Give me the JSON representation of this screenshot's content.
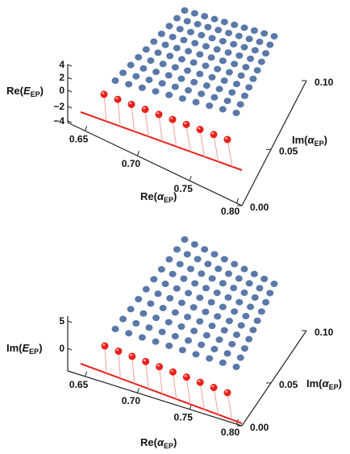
{
  "chart_data": [
    {
      "type": "scatter3d",
      "z_axis_label": {
        "base": "Re(",
        "italic": "E",
        "sub": "EP",
        "close": ")"
      },
      "x_axis_label": {
        "base": "Re(",
        "italic": "α",
        "sub": "EP",
        "close": ")"
      },
      "y_axis_label": {
        "base": "Im(",
        "italic": "α",
        "sub": "EP",
        "close": ")"
      },
      "z_ticks": [
        "4",
        "2",
        "0",
        "−2",
        "−4"
      ],
      "x_ticks": [
        "0.65",
        "0.70",
        "0.75",
        "0.80"
      ],
      "y_ticks": [
        "0.00",
        "0.05",
        "0.10"
      ],
      "xlim": [
        0.65,
        0.8
      ],
      "ylim": [
        0.0,
        0.1
      ],
      "red_points": {
        "x": [
          0.65,
          0.66,
          0.67,
          0.68,
          0.69,
          0.7,
          0.71,
          0.72,
          0.73,
          0.74
        ],
        "y": 0.0
      },
      "blue_points": {
        "rows": 10,
        "cols": 10
      },
      "colors": {
        "blue": "#5a78a8",
        "red": "#e8221c"
      }
    },
    {
      "type": "scatter3d",
      "z_axis_label": {
        "base": "Im(",
        "italic": "E",
        "sub": "EP",
        "close": ")"
      },
      "x_axis_label": {
        "base": "Re(",
        "italic": "α",
        "sub": "EP",
        "close": ")"
      },
      "y_axis_label": {
        "base": "Im(",
        "italic": "α",
        "sub": "EP",
        "close": ")"
      },
      "z_ticks": [
        "5",
        "0"
      ],
      "x_ticks": [
        "0.65",
        "0.70",
        "0.75",
        "0.80"
      ],
      "y_ticks": [
        "0.00",
        "0.05",
        "0.10"
      ],
      "xlim": [
        0.65,
        0.8
      ],
      "ylim": [
        0.0,
        0.1
      ],
      "red_points": {
        "x": [
          0.65,
          0.66,
          0.67,
          0.68,
          0.69,
          0.7,
          0.71,
          0.72,
          0.73,
          0.74
        ],
        "y": 0.0
      },
      "blue_points": {
        "rows": 10,
        "cols": 10
      },
      "colors": {
        "blue": "#5a78a8",
        "red": "#e8221c"
      }
    }
  ]
}
